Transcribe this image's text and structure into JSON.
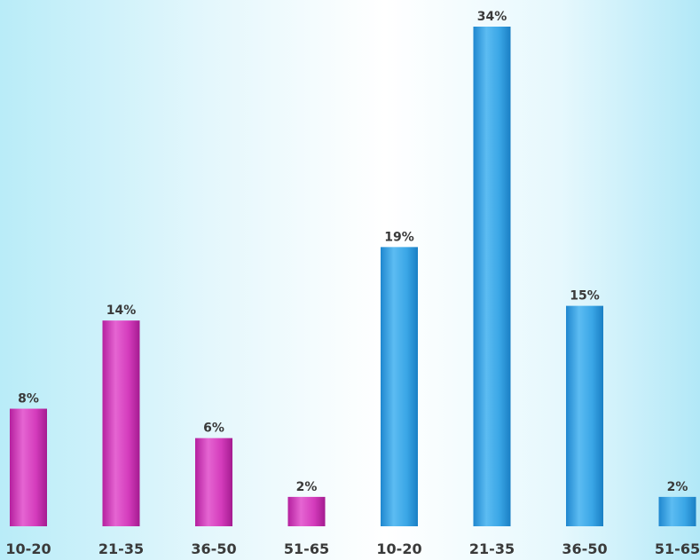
{
  "chart_data": {
    "type": "bar",
    "categories": [
      "10-20",
      "21-35",
      "36-50",
      "51-65",
      "10-20",
      "21-35",
      "36-50",
      "51-65"
    ],
    "series": [
      {
        "values": [
          8,
          14,
          6,
          2,
          null,
          null,
          null,
          null
        ],
        "color": "#d63fbf"
      },
      {
        "values": [
          null,
          null,
          null,
          null,
          19,
          34,
          15,
          2
        ],
        "color": "#3aa6e6"
      }
    ],
    "value_suffix": "%",
    "title": "",
    "xlabel": "",
    "ylabel": "",
    "ylim": [
      0,
      34
    ],
    "grid": false,
    "legend": "none"
  }
}
